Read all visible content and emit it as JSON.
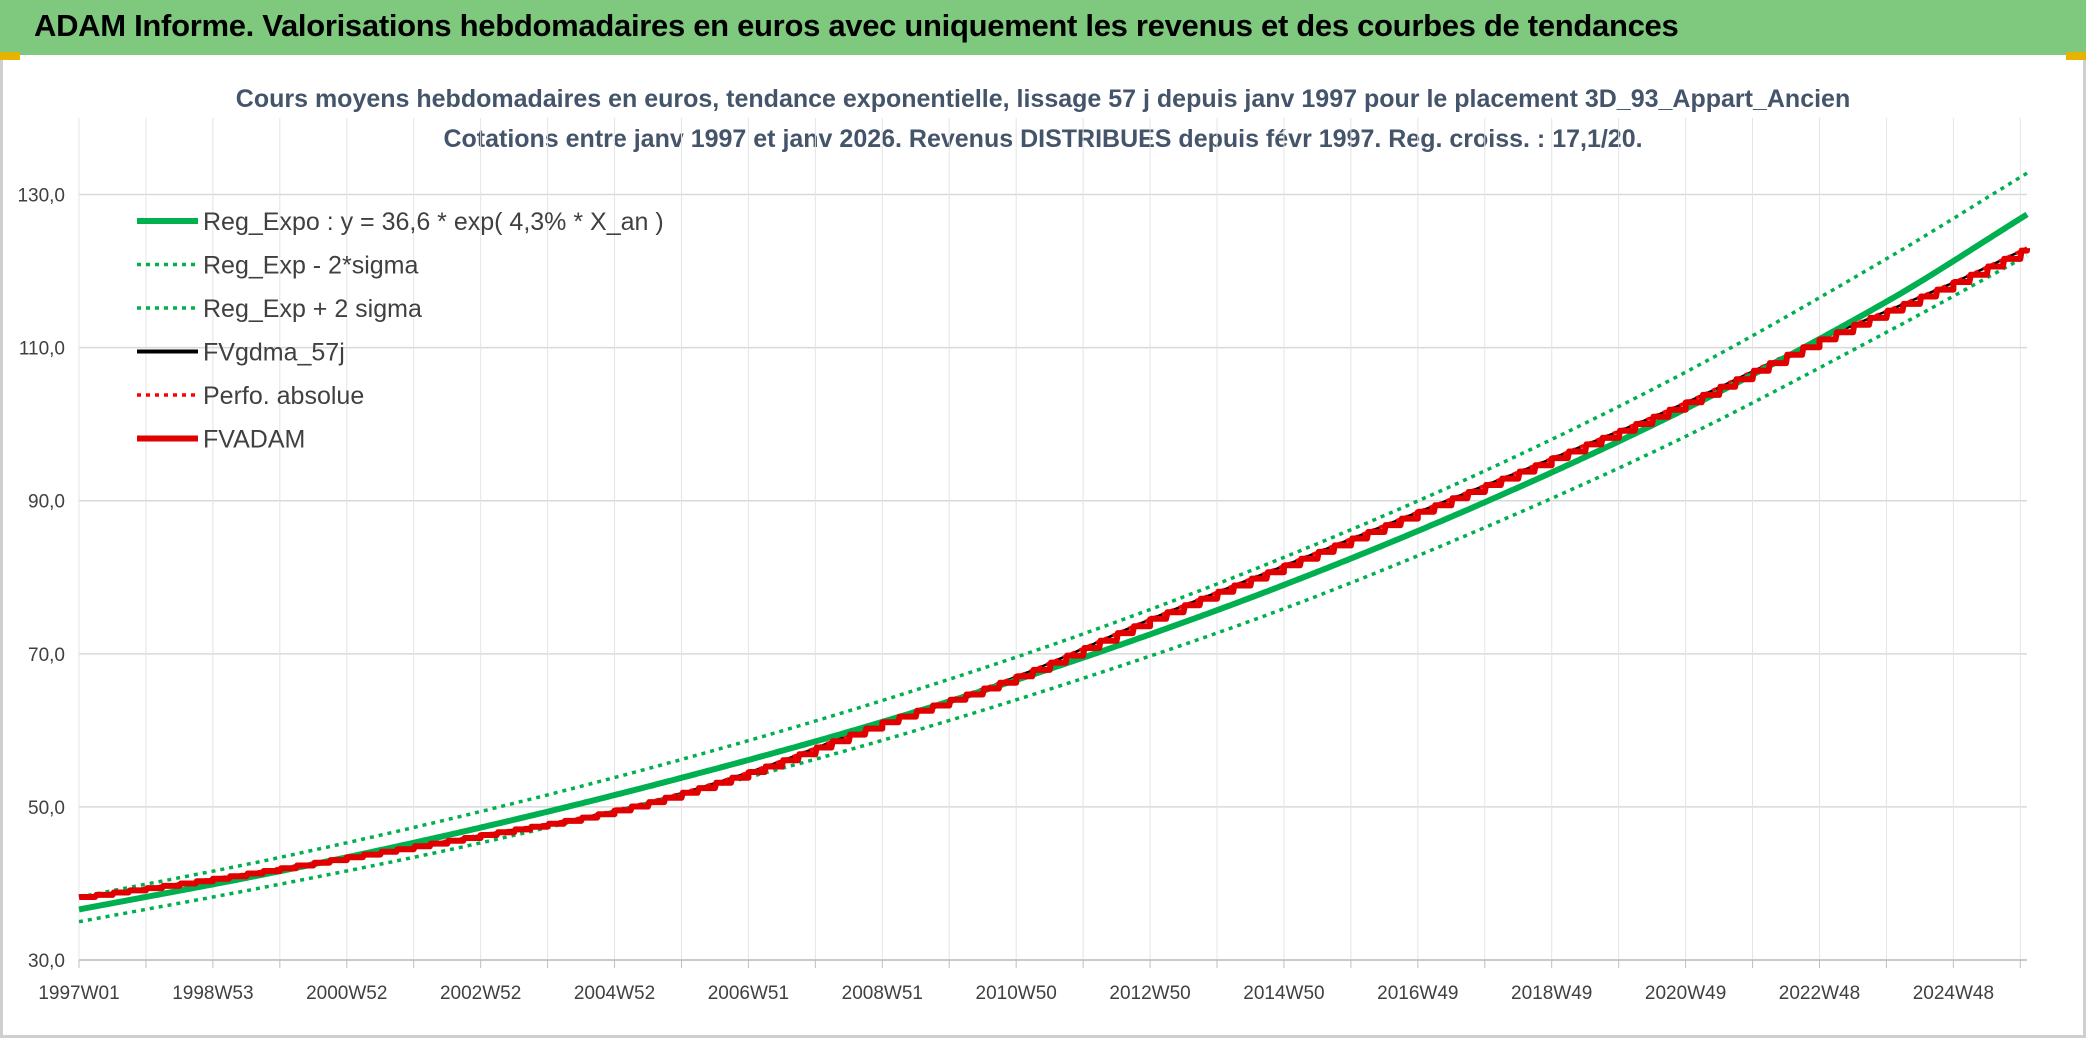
{
  "header": {
    "title": "ADAM Informe. Valorisations hebdomadaires en euros avec uniquement les revenus et des courbes de tendances"
  },
  "chart_data": {
    "type": "line",
    "title": "Cours moyens hebdomadaires en euros, tendance exponentielle, lissage 57 j depuis janv 1997 pour le placement 3D_93_Appart_Ancien",
    "subtitle": "Cotations entre janv 1997 et janv 2026. Revenus DISTRIBUES depuis févr 1997. Reg. croiss. : 17,1/20.",
    "xlabel": "",
    "ylabel": "",
    "x_range": [
      1997.0,
      2026.1
    ],
    "ylim": [
      30,
      140
    ],
    "grid": true,
    "legend_position": "top-left",
    "y_ticks": [
      "30,0",
      "50,0",
      "70,0",
      "90,0",
      "110,0",
      "130,0"
    ],
    "x_ticks": [
      {
        "label": "1997W01",
        "x": 1997.0
      },
      {
        "label": "1998W53",
        "x": 1999.0
      },
      {
        "label": "2000W52",
        "x": 2001.0
      },
      {
        "label": "2002W52",
        "x": 2003.0
      },
      {
        "label": "2004W52",
        "x": 2005.0
      },
      {
        "label": "2006W51",
        "x": 2007.0
      },
      {
        "label": "2008W51",
        "x": 2009.0
      },
      {
        "label": "2010W50",
        "x": 2011.0
      },
      {
        "label": "2012W50",
        "x": 2013.0
      },
      {
        "label": "2014W50",
        "x": 2015.0
      },
      {
        "label": "2016W49",
        "x": 2017.0
      },
      {
        "label": "2018W49",
        "x": 2019.0
      },
      {
        "label": "2020W49",
        "x": 2021.0
      },
      {
        "label": "2022W48",
        "x": 2023.0
      },
      {
        "label": "2024W48",
        "x": 2025.0
      }
    ],
    "series": [
      {
        "name": "Reg_Expo : y = 36,6 * exp( 4,3% *  X_an )",
        "color": "#00b050",
        "style": "solid-thick",
        "x": [
          1997,
          2000,
          2003,
          2006,
          2009,
          2012,
          2015,
          2018,
          2021,
          2024,
          2026.1
        ],
        "y": [
          36.6,
          41.6,
          47.3,
          53.8,
          61.1,
          69.5,
          79.0,
          89.8,
          102.0,
          116.0,
          127.4
        ]
      },
      {
        "name": "Reg_Exp - 2*sigma",
        "color": "#00b050",
        "style": "dotted",
        "x": [
          1997,
          2000,
          2003,
          2006,
          2009,
          2012,
          2015,
          2018,
          2021,
          2024,
          2026.1
        ],
        "y": [
          35.0,
          39.9,
          45.3,
          51.6,
          58.7,
          66.8,
          75.9,
          86.5,
          98.4,
          112.0,
          122.0
        ]
      },
      {
        "name": "Reg_Exp + 2 sigma",
        "color": "#00b050",
        "style": "dotted",
        "x": [
          1997,
          2000,
          2003,
          2006,
          2009,
          2012,
          2015,
          2018,
          2021,
          2024,
          2026.1
        ],
        "y": [
          38.2,
          43.4,
          49.4,
          56.2,
          63.9,
          72.6,
          82.6,
          93.9,
          106.8,
          121.6,
          132.8
        ]
      },
      {
        "name": "FVgdma_57j",
        "color": "#000000",
        "style": "solid",
        "x": [
          1997,
          1999,
          2001,
          2003,
          2005,
          2007,
          2009,
          2011,
          2013,
          2015,
          2017,
          2019,
          2021,
          2023,
          2025,
          2026.1
        ],
        "y": [
          38.2,
          40.6,
          43.4,
          46.3,
          49.5,
          54.5,
          61.0,
          67.0,
          74.5,
          81.5,
          88.5,
          95.5,
          102.8,
          111.0,
          118.5,
          123.0
        ]
      },
      {
        "name": "Perfo. absolue",
        "color": "#ff0000",
        "style": "dotted",
        "x": [
          1997,
          1999,
          2001,
          2003,
          2005,
          2007,
          2009,
          2011,
          2013,
          2015,
          2017,
          2019,
          2021,
          2023,
          2025,
          2026.1
        ],
        "y": [
          38.2,
          40.6,
          43.4,
          46.3,
          49.5,
          54.5,
          61.0,
          67.0,
          74.5,
          81.5,
          88.5,
          95.5,
          102.8,
          111.0,
          118.5,
          123.0
        ]
      },
      {
        "name": "FVADAM",
        "color": "#e00000",
        "style": "solid-thick-stepped",
        "x": [
          1997,
          1999,
          2001,
          2003,
          2005,
          2007,
          2009,
          2011,
          2013,
          2015,
          2017,
          2019,
          2021,
          2023,
          2025,
          2026.1
        ],
        "y": [
          38.2,
          40.6,
          43.4,
          46.3,
          49.5,
          54.5,
          61.0,
          67.0,
          74.5,
          81.5,
          88.5,
          95.5,
          102.8,
          111.0,
          118.5,
          123.0
        ]
      }
    ]
  }
}
